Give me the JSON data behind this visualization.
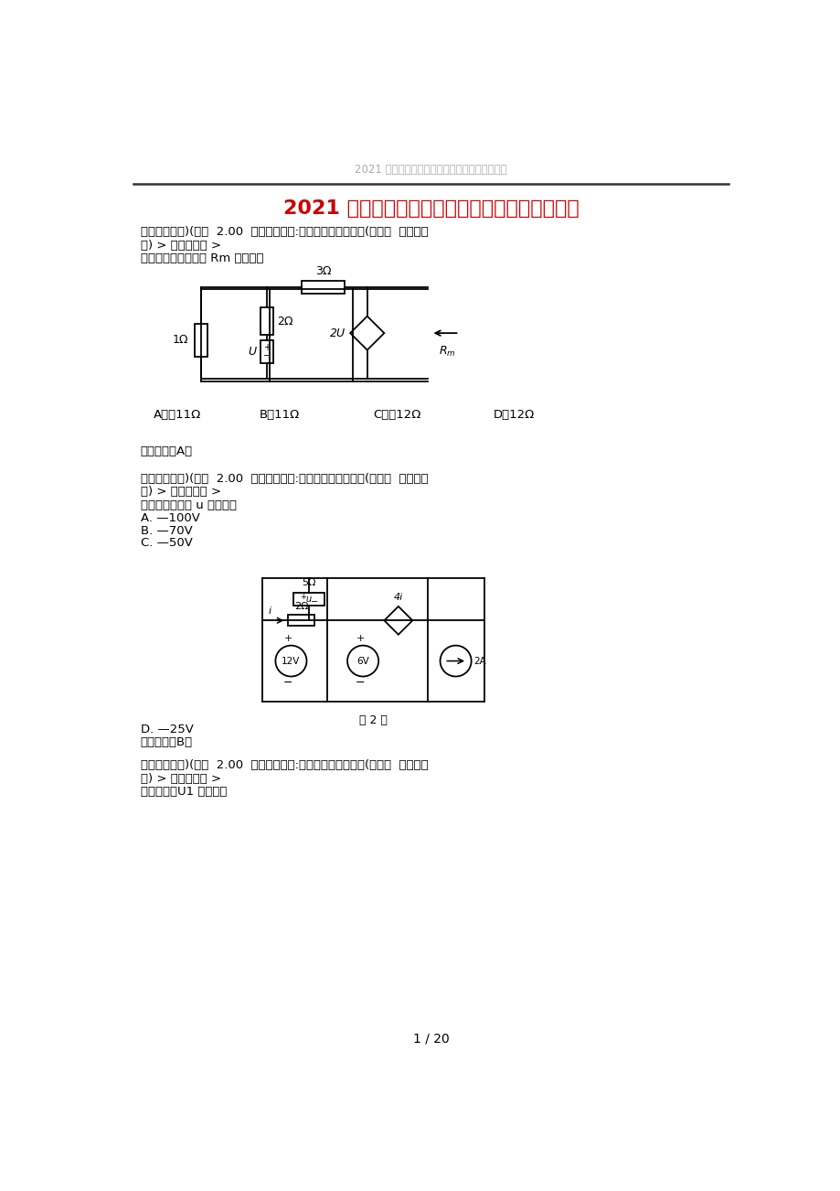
{
  "page_title_watermark": "2021 年注册电气工程师《供配电专业》基础真题",
  "main_title": "2021 年注册电气工程师《供配电专业》基础真题",
  "q1_header_line1": "（单项选择题)(每题  2.00  分）题目分类:未按章节分类的试题(如真题  模拟预测",
  "q1_header_line2": "题) > 单项选择题 >",
  "q1_text": "图中电路的输人电阻 Rm 为（）。",
  "q1_opt_A": "A．－11Ω",
  "q1_opt_B": "B．11Ω",
  "q1_opt_C": "C．－12Ω",
  "q1_opt_D": "D．12Ω",
  "q1_answer": "正确答案：A，",
  "q2_header_line1": "（单项选择题)(每题  2.00  分）题目分类:未按章节分类的试题(如真题  模拟预测",
  "q2_header_line2": "题) > 单项选择题 >",
  "q2_text": "如图所示，电压 u 为（）。",
  "q2_opt_A": "A. —100V",
  "q2_opt_B": "B. —70V",
  "q2_opt_C": "C. —50V",
  "q2_opt_D": "D. —25V",
  "q2_answer": "正确答案：B，",
  "q3_header_line1": "（单项选择题)(每题  2.00  分）题目分类:未按章节分类的试题(如真题  模拟预测",
  "q3_header_line2": "题) > 单项选择题 >",
  "q3_text": "如图所示，U1 为（）。",
  "fig2_label": "题 2 图",
  "page_num": "1 / 20",
  "bg_color": "#ffffff",
  "text_color": "#000000",
  "title_color": "#cc0000",
  "watermark_color": "#aaaaaa",
  "line_color": "#333333"
}
